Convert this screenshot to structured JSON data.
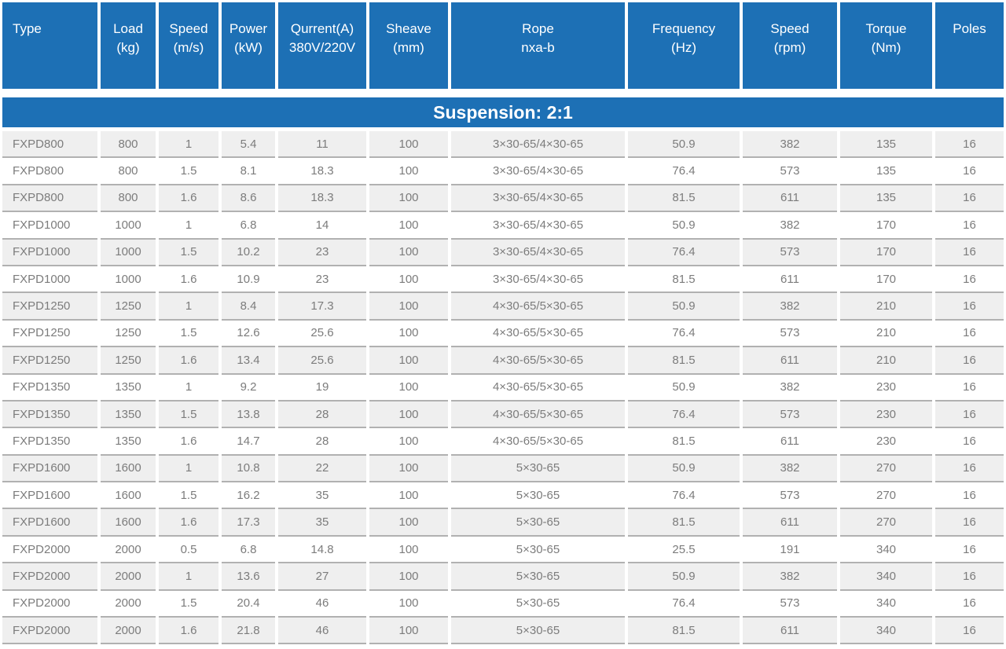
{
  "colors": {
    "header_blue": "#1d70b5",
    "row_alt_gray": "#efefef",
    "row_border_gray": "#b1b1b1",
    "data_text_gray": "#7c7c7c",
    "header_text": "#ffffff"
  },
  "table": {
    "section_title": "Suspension: 2:1",
    "columns": [
      {
        "id": "type",
        "label": "Type"
      },
      {
        "id": "load_kg",
        "label": "Load\n(kg)"
      },
      {
        "id": "speed_ms",
        "label": "Speed\n(m/s)"
      },
      {
        "id": "power_kw",
        "label": "Power\n(kW)"
      },
      {
        "id": "current_a",
        "label": "Qurrent(A)\n380V/220V"
      },
      {
        "id": "sheave_mm",
        "label": "Sheave\n(mm)"
      },
      {
        "id": "rope",
        "label": "Rope\nnxa-b"
      },
      {
        "id": "frequency_hz",
        "label": "Frequency\n(Hz)"
      },
      {
        "id": "speed_rpm",
        "label": "Speed\n(rpm)"
      },
      {
        "id": "torque_nm",
        "label": "Torque\n(Nm)"
      },
      {
        "id": "poles",
        "label": "Poles"
      }
    ],
    "rows": [
      [
        "FXPD800",
        "800",
        "1",
        "5.4",
        "11",
        "100",
        "3×30-65/4×30-65",
        "50.9",
        "382",
        "135",
        "16"
      ],
      [
        "FXPD800",
        "800",
        "1.5",
        "8.1",
        "18.3",
        "100",
        "3×30-65/4×30-65",
        "76.4",
        "573",
        "135",
        "16"
      ],
      [
        "FXPD800",
        "800",
        "1.6",
        "8.6",
        "18.3",
        "100",
        "3×30-65/4×30-65",
        "81.5",
        "611",
        "135",
        "16"
      ],
      [
        "FXPD1000",
        "1000",
        "1",
        "6.8",
        "14",
        "100",
        "3×30-65/4×30-65",
        "50.9",
        "382",
        "170",
        "16"
      ],
      [
        "FXPD1000",
        "1000",
        "1.5",
        "10.2",
        "23",
        "100",
        "3×30-65/4×30-65",
        "76.4",
        "573",
        "170",
        "16"
      ],
      [
        "FXPD1000",
        "1000",
        "1.6",
        "10.9",
        "23",
        "100",
        "3×30-65/4×30-65",
        "81.5",
        "611",
        "170",
        "16"
      ],
      [
        "FXPD1250",
        "1250",
        "1",
        "8.4",
        "17.3",
        "100",
        "4×30-65/5×30-65",
        "50.9",
        "382",
        "210",
        "16"
      ],
      [
        "FXPD1250",
        "1250",
        "1.5",
        "12.6",
        "25.6",
        "100",
        "4×30-65/5×30-65",
        "76.4",
        "573",
        "210",
        "16"
      ],
      [
        "FXPD1250",
        "1250",
        "1.6",
        "13.4",
        "25.6",
        "100",
        "4×30-65/5×30-65",
        "81.5",
        "611",
        "210",
        "16"
      ],
      [
        "FXPD1350",
        "1350",
        "1",
        "9.2",
        "19",
        "100",
        "4×30-65/5×30-65",
        "50.9",
        "382",
        "230",
        "16"
      ],
      [
        "FXPD1350",
        "1350",
        "1.5",
        "13.8",
        "28",
        "100",
        "4×30-65/5×30-65",
        "76.4",
        "573",
        "230",
        "16"
      ],
      [
        "FXPD1350",
        "1350",
        "1.6",
        "14.7",
        "28",
        "100",
        "4×30-65/5×30-65",
        "81.5",
        "611",
        "230",
        "16"
      ],
      [
        "FXPD1600",
        "1600",
        "1",
        "10.8",
        "22",
        "100",
        "5×30-65",
        "50.9",
        "382",
        "270",
        "16"
      ],
      [
        "FXPD1600",
        "1600",
        "1.5",
        "16.2",
        "35",
        "100",
        "5×30-65",
        "76.4",
        "573",
        "270",
        "16"
      ],
      [
        "FXPD1600",
        "1600",
        "1.6",
        "17.3",
        "35",
        "100",
        "5×30-65",
        "81.5",
        "611",
        "270",
        "16"
      ],
      [
        "FXPD2000",
        "2000",
        "0.5",
        "6.8",
        "14.8",
        "100",
        "5×30-65",
        "25.5",
        "191",
        "340",
        "16"
      ],
      [
        "FXPD2000",
        "2000",
        "1",
        "13.6",
        "27",
        "100",
        "5×30-65",
        "50.9",
        "382",
        "340",
        "16"
      ],
      [
        "FXPD2000",
        "2000",
        "1.5",
        "20.4",
        "46",
        "100",
        "5×30-65",
        "76.4",
        "573",
        "340",
        "16"
      ],
      [
        "FXPD2000",
        "2000",
        "1.6",
        "21.8",
        "46",
        "100",
        "5×30-65",
        "81.5",
        "611",
        "340",
        "16"
      ]
    ]
  }
}
